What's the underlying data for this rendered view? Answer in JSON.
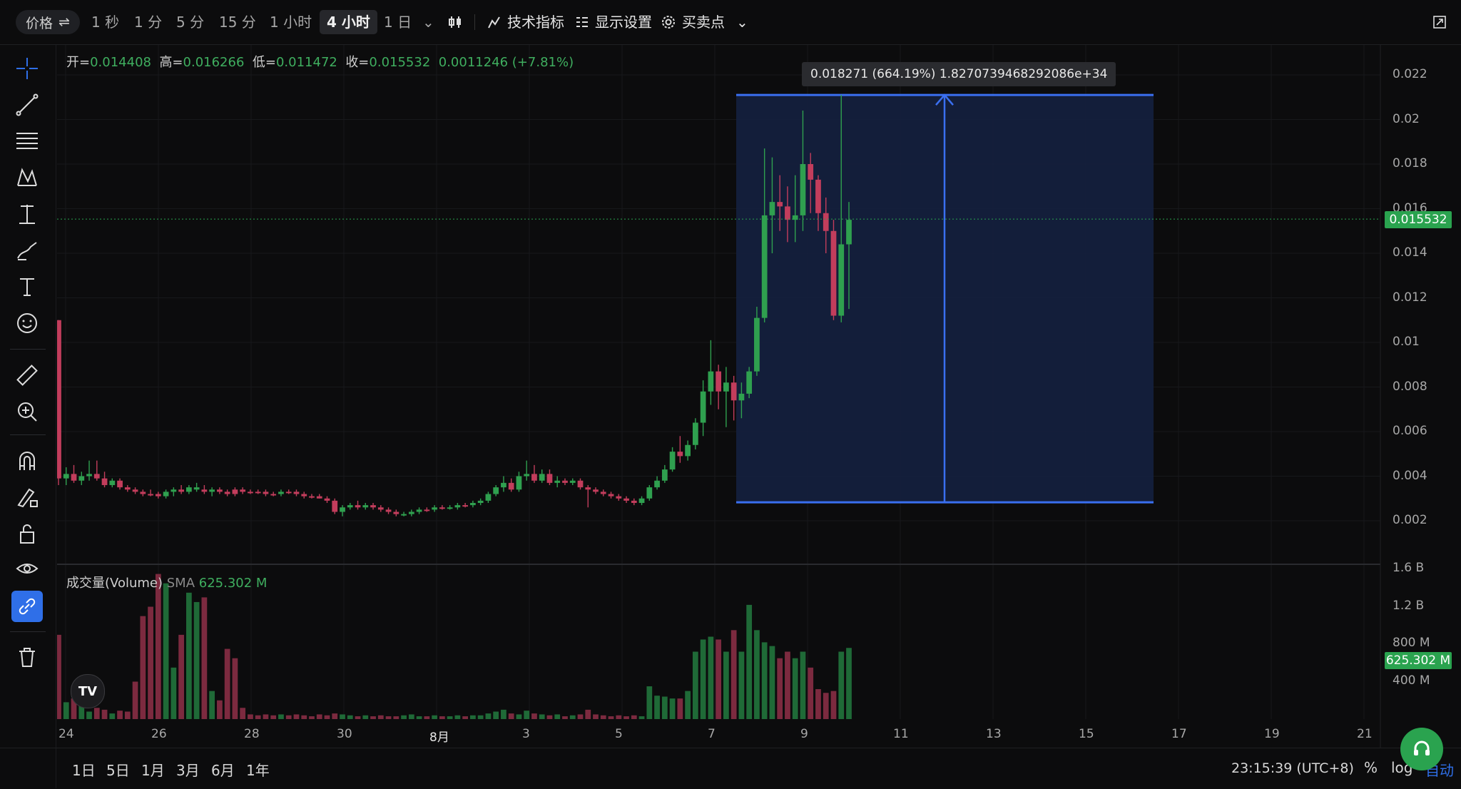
{
  "toolbar": {
    "price_pill": "价格",
    "timeframes": [
      {
        "label": "1 秒",
        "active": false
      },
      {
        "label": "1 分",
        "active": false
      },
      {
        "label": "5 分",
        "active": false
      },
      {
        "label": "15 分",
        "active": false
      },
      {
        "label": "1 小时",
        "active": false
      },
      {
        "label": "4 小时",
        "active": true
      },
      {
        "label": "1 日",
        "active": false
      }
    ],
    "indicators_label": "技术指标",
    "display_label": "显示设置",
    "trade_points_label": "买卖点"
  },
  "ohlc": {
    "open_label": "开=",
    "open": "0.014408",
    "high_label": "高=",
    "high": "0.016266",
    "low_label": "低=",
    "low": "0.011472",
    "close_label": "收=",
    "close": "0.015532",
    "change": "0.0011246 (+7.81%)"
  },
  "volume": {
    "name": "成交量(Volume)",
    "sma_label": "SMA",
    "sma_value": "625.302 M"
  },
  "measure": {
    "label": "0.018271 (664.19%) 1.8270739468292086e+34"
  },
  "price_axis": [
    "0.022",
    "0.02",
    "0.018",
    "0.016",
    "0.014",
    "0.012",
    "0.01",
    "0.008",
    "0.006",
    "0.004",
    "0.002"
  ],
  "volume_axis": [
    "1.6 B",
    "1.2 B",
    "800 M",
    "400 M"
  ],
  "current_price_tag": "0.015532",
  "current_volume_tag": "625.302 M",
  "time_axis": [
    "24",
    "26",
    "28",
    "30",
    "8月",
    "3",
    "5",
    "7",
    "9",
    "11",
    "13",
    "15",
    "17",
    "19",
    "21"
  ],
  "ranges": [
    "1日",
    "5日",
    "1月",
    "3月",
    "6月",
    "1年"
  ],
  "clock": "23:15:39 (UTC+8)",
  "scale_buttons": {
    "percent": "%",
    "log": "log",
    "auto": "自动"
  },
  "colors": {
    "up": "#2fa04f",
    "down": "#c23d5c",
    "measure": "#3a6ff0",
    "measure_fill": "#14203d",
    "bg": "#0c0c0d"
  },
  "chart_data": {
    "type": "candlestick",
    "price_ylim": [
      0.001,
      0.023
    ],
    "volume_ylim": [
      0,
      1.6
    ],
    "volume_unit": "B",
    "candles": [
      [
        0.011,
        0.011,
        0.0036,
        0.0039,
        0.9,
        "d"
      ],
      [
        0.0039,
        0.0044,
        0.0036,
        0.0041,
        0.18,
        "u"
      ],
      [
        0.0041,
        0.0045,
        0.0037,
        0.0038,
        0.22,
        "d"
      ],
      [
        0.0038,
        0.0042,
        0.0036,
        0.004,
        0.15,
        "u"
      ],
      [
        0.004,
        0.0047,
        0.0038,
        0.0041,
        0.08,
        "u"
      ],
      [
        0.0041,
        0.0047,
        0.0038,
        0.0039,
        0.12,
        "d"
      ],
      [
        0.0039,
        0.0042,
        0.0035,
        0.0036,
        0.1,
        "d"
      ],
      [
        0.0036,
        0.0039,
        0.0035,
        0.0038,
        0.06,
        "u"
      ],
      [
        0.0038,
        0.0039,
        0.0034,
        0.0035,
        0.09,
        "d"
      ],
      [
        0.0035,
        0.0036,
        0.0033,
        0.0034,
        0.08,
        "d"
      ],
      [
        0.0034,
        0.0035,
        0.0032,
        0.0033,
        0.4,
        "d"
      ],
      [
        0.0033,
        0.0034,
        0.0031,
        0.0032,
        1.1,
        "d"
      ],
      [
        0.0032,
        0.0034,
        0.0031,
        0.0032,
        1.2,
        "d"
      ],
      [
        0.0032,
        0.0033,
        0.003,
        0.0031,
        1.55,
        "d"
      ],
      [
        0.0031,
        0.0034,
        0.003,
        0.0033,
        1.45,
        "u"
      ],
      [
        0.0033,
        0.0035,
        0.0031,
        0.0034,
        0.55,
        "u"
      ],
      [
        0.0034,
        0.0036,
        0.0032,
        0.0033,
        0.9,
        "d"
      ],
      [
        0.0033,
        0.0036,
        0.0032,
        0.0035,
        1.35,
        "u"
      ],
      [
        0.0035,
        0.0037,
        0.0033,
        0.0034,
        1.25,
        "u"
      ],
      [
        0.0034,
        0.0036,
        0.0032,
        0.0033,
        1.3,
        "d"
      ],
      [
        0.0033,
        0.0035,
        0.0031,
        0.0034,
        0.3,
        "u"
      ],
      [
        0.0034,
        0.0035,
        0.0032,
        0.0033,
        0.2,
        "d"
      ],
      [
        0.0033,
        0.0034,
        0.0031,
        0.0032,
        0.75,
        "d"
      ],
      [
        0.0032,
        0.0035,
        0.0031,
        0.0034,
        0.65,
        "d"
      ],
      [
        0.0034,
        0.0035,
        0.0032,
        0.0033,
        0.12,
        "d"
      ],
      [
        0.0033,
        0.0034,
        0.0032,
        0.0033,
        0.05,
        "d"
      ],
      [
        0.0033,
        0.0034,
        0.0032,
        0.0033,
        0.04,
        "d"
      ],
      [
        0.0033,
        0.0034,
        0.0031,
        0.0032,
        0.05,
        "d"
      ],
      [
        0.0032,
        0.0033,
        0.0031,
        0.0032,
        0.04,
        "d"
      ],
      [
        0.0032,
        0.0034,
        0.0031,
        0.0033,
        0.05,
        "u"
      ],
      [
        0.0033,
        0.0034,
        0.0032,
        0.0033,
        0.04,
        "d"
      ],
      [
        0.0033,
        0.0034,
        0.0031,
        0.0032,
        0.05,
        "d"
      ],
      [
        0.0032,
        0.0033,
        0.003,
        0.0031,
        0.04,
        "d"
      ],
      [
        0.0031,
        0.0032,
        0.003,
        0.0031,
        0.03,
        "d"
      ],
      [
        0.0031,
        0.0032,
        0.003,
        0.003,
        0.05,
        "d"
      ],
      [
        0.003,
        0.0031,
        0.0028,
        0.0029,
        0.04,
        "d"
      ],
      [
        0.0029,
        0.003,
        0.0023,
        0.0024,
        0.06,
        "d"
      ],
      [
        0.0024,
        0.0027,
        0.0022,
        0.0026,
        0.05,
        "u"
      ],
      [
        0.0026,
        0.0028,
        0.0025,
        0.0027,
        0.04,
        "u"
      ],
      [
        0.0027,
        0.0029,
        0.0025,
        0.0026,
        0.03,
        "d"
      ],
      [
        0.0026,
        0.0028,
        0.0025,
        0.0027,
        0.04,
        "u"
      ],
      [
        0.0027,
        0.0028,
        0.0025,
        0.0026,
        0.03,
        "d"
      ],
      [
        0.0026,
        0.0027,
        0.0024,
        0.0025,
        0.04,
        "d"
      ],
      [
        0.0025,
        0.0026,
        0.0023,
        0.0024,
        0.03,
        "d"
      ],
      [
        0.0024,
        0.0025,
        0.0022,
        0.0023,
        0.03,
        "d"
      ],
      [
        0.0023,
        0.0024,
        0.0022,
        0.0023,
        0.04,
        "u"
      ],
      [
        0.0023,
        0.0025,
        0.0022,
        0.0024,
        0.05,
        "u"
      ],
      [
        0.0024,
        0.0026,
        0.0023,
        0.0025,
        0.03,
        "u"
      ],
      [
        0.0025,
        0.0026,
        0.0024,
        0.0025,
        0.03,
        "d"
      ],
      [
        0.0025,
        0.0027,
        0.0024,
        0.0026,
        0.04,
        "u"
      ],
      [
        0.0026,
        0.0027,
        0.0025,
        0.0026,
        0.03,
        "d"
      ],
      [
        0.0026,
        0.0027,
        0.0025,
        0.0026,
        0.03,
        "u"
      ],
      [
        0.0026,
        0.0028,
        0.0025,
        0.0027,
        0.04,
        "u"
      ],
      [
        0.0027,
        0.0028,
        0.0026,
        0.0027,
        0.03,
        "d"
      ],
      [
        0.0027,
        0.0029,
        0.0026,
        0.0028,
        0.04,
        "u"
      ],
      [
        0.0028,
        0.003,
        0.0027,
        0.0029,
        0.04,
        "u"
      ],
      [
        0.0029,
        0.0033,
        0.0028,
        0.0032,
        0.06,
        "u"
      ],
      [
        0.0032,
        0.0036,
        0.0031,
        0.0035,
        0.08,
        "u"
      ],
      [
        0.0035,
        0.004,
        0.0033,
        0.0037,
        0.1,
        "u"
      ],
      [
        0.0037,
        0.0039,
        0.0033,
        0.0034,
        0.06,
        "d"
      ],
      [
        0.0034,
        0.0042,
        0.0033,
        0.004,
        0.05,
        "u"
      ],
      [
        0.004,
        0.0047,
        0.0038,
        0.0041,
        0.09,
        "u"
      ],
      [
        0.0041,
        0.0045,
        0.0037,
        0.0038,
        0.06,
        "d"
      ],
      [
        0.0038,
        0.0043,
        0.0037,
        0.0041,
        0.05,
        "u"
      ],
      [
        0.0041,
        0.0043,
        0.0036,
        0.0037,
        0.04,
        "d"
      ],
      [
        0.0037,
        0.004,
        0.0035,
        0.0038,
        0.05,
        "u"
      ],
      [
        0.0038,
        0.0039,
        0.0036,
        0.0037,
        0.03,
        "d"
      ],
      [
        0.0037,
        0.0039,
        0.0036,
        0.0038,
        0.04,
        "u"
      ],
      [
        0.0038,
        0.0039,
        0.0034,
        0.0035,
        0.05,
        "d"
      ],
      [
        0.0035,
        0.0036,
        0.0026,
        0.0034,
        0.1,
        "d"
      ],
      [
        0.0034,
        0.0035,
        0.0032,
        0.0033,
        0.05,
        "d"
      ],
      [
        0.0033,
        0.0034,
        0.0031,
        0.0032,
        0.04,
        "d"
      ],
      [
        0.0032,
        0.0033,
        0.003,
        0.0031,
        0.03,
        "d"
      ],
      [
        0.0031,
        0.0032,
        0.0029,
        0.003,
        0.04,
        "d"
      ],
      [
        0.003,
        0.0031,
        0.0028,
        0.0029,
        0.03,
        "d"
      ],
      [
        0.0029,
        0.003,
        0.0027,
        0.0028,
        0.04,
        "d"
      ],
      [
        0.0028,
        0.0031,
        0.0027,
        0.003,
        0.03,
        "u"
      ],
      [
        0.003,
        0.0036,
        0.0029,
        0.0035,
        0.35,
        "u"
      ],
      [
        0.0035,
        0.004,
        0.0034,
        0.0038,
        0.25,
        "u"
      ],
      [
        0.0038,
        0.0045,
        0.0037,
        0.0043,
        0.24,
        "u"
      ],
      [
        0.0043,
        0.0053,
        0.0042,
        0.0051,
        0.22,
        "u"
      ],
      [
        0.0051,
        0.0058,
        0.0046,
        0.0049,
        0.22,
        "d"
      ],
      [
        0.0049,
        0.0056,
        0.0047,
        0.0054,
        0.3,
        "u"
      ],
      [
        0.0054,
        0.0066,
        0.0052,
        0.0064,
        0.72,
        "u"
      ],
      [
        0.0064,
        0.0083,
        0.0058,
        0.0078,
        0.85,
        "u"
      ],
      [
        0.0078,
        0.0101,
        0.0072,
        0.0087,
        0.88,
        "u"
      ],
      [
        0.0087,
        0.009,
        0.007,
        0.0078,
        0.85,
        "d"
      ],
      [
        0.0078,
        0.0089,
        0.0062,
        0.0082,
        0.72,
        "u"
      ],
      [
        0.0082,
        0.0085,
        0.0065,
        0.0074,
        0.95,
        "d"
      ],
      [
        0.0074,
        0.0082,
        0.0066,
        0.0077,
        0.72,
        "u"
      ],
      [
        0.0077,
        0.0089,
        0.0075,
        0.0087,
        1.22,
        "u"
      ],
      [
        0.0087,
        0.0116,
        0.0085,
        0.0111,
        0.95,
        "u"
      ],
      [
        0.0111,
        0.0187,
        0.0109,
        0.0157,
        0.82,
        "u"
      ],
      [
        0.0157,
        0.0183,
        0.014,
        0.0163,
        0.78,
        "u"
      ],
      [
        0.0163,
        0.0175,
        0.015,
        0.0161,
        0.65,
        "d"
      ],
      [
        0.0161,
        0.017,
        0.0145,
        0.0155,
        0.72,
        "d"
      ],
      [
        0.0155,
        0.0175,
        0.0145,
        0.0157,
        0.65,
        "u"
      ],
      [
        0.0157,
        0.0204,
        0.015,
        0.018,
        0.72,
        "u"
      ],
      [
        0.018,
        0.0185,
        0.0158,
        0.0173,
        0.55,
        "d"
      ],
      [
        0.0173,
        0.0175,
        0.015,
        0.0158,
        0.32,
        "d"
      ],
      [
        0.0158,
        0.0165,
        0.014,
        0.015,
        0.28,
        "d"
      ],
      [
        0.015,
        0.0155,
        0.011,
        0.0112,
        0.3,
        "d"
      ],
      [
        0.0112,
        0.0211,
        0.0109,
        0.0144,
        0.72,
        "u"
      ],
      [
        0.0144,
        0.0163,
        0.0115,
        0.0155,
        0.76,
        "u"
      ]
    ],
    "measure_range": {
      "low": 0.00283,
      "high": 0.0211
    }
  }
}
